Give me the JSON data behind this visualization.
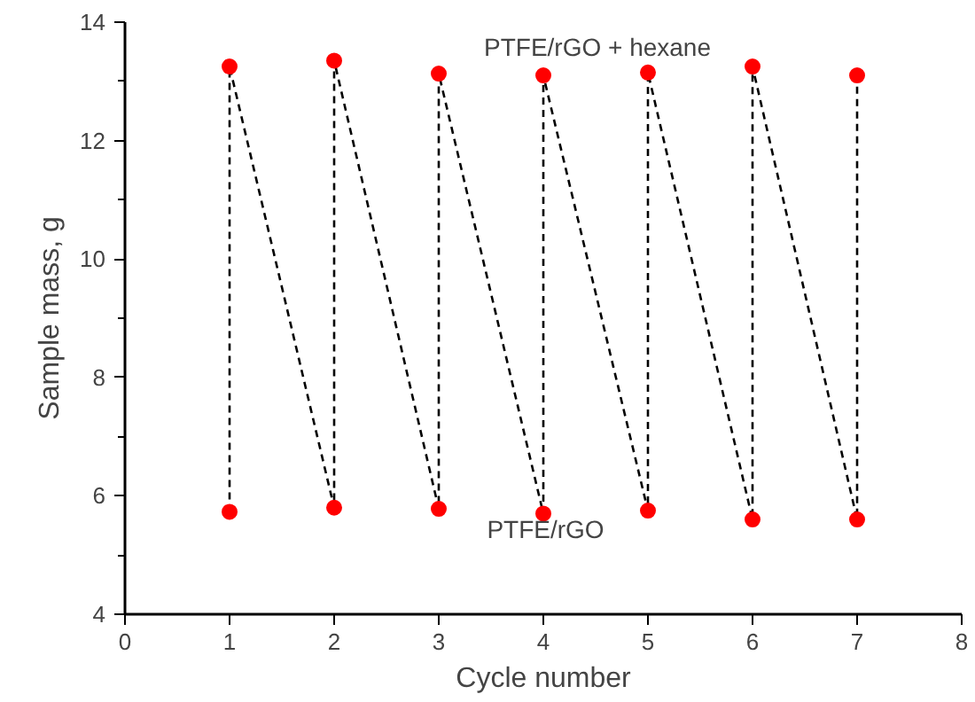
{
  "chart_data": {
    "type": "line",
    "xlabel": "Cycle number",
    "ylabel": "Sample mass, g",
    "x": [
      1,
      1,
      2,
      2,
      3,
      3,
      4,
      4,
      5,
      5,
      6,
      6,
      7,
      7
    ],
    "series": [
      {
        "color": "#ff0000",
        "values": [
          5.73,
          13.25,
          5.8,
          13.35,
          5.78,
          13.13,
          5.7,
          13.1,
          5.75,
          13.15,
          5.6,
          13.25,
          5.6,
          13.1
        ]
      }
    ],
    "xlim": [
      0,
      8
    ],
    "ylim": [
      4,
      14
    ],
    "xticks": [
      0,
      1,
      2,
      3,
      4,
      5,
      6,
      7,
      8
    ],
    "yticks": [
      4,
      6,
      8,
      10,
      12,
      14
    ],
    "marker": "circle",
    "line_style": "dashed",
    "grid": false,
    "annotations": [
      "PTFE/rGO + hexane",
      "PTFE/rGO"
    ]
  }
}
